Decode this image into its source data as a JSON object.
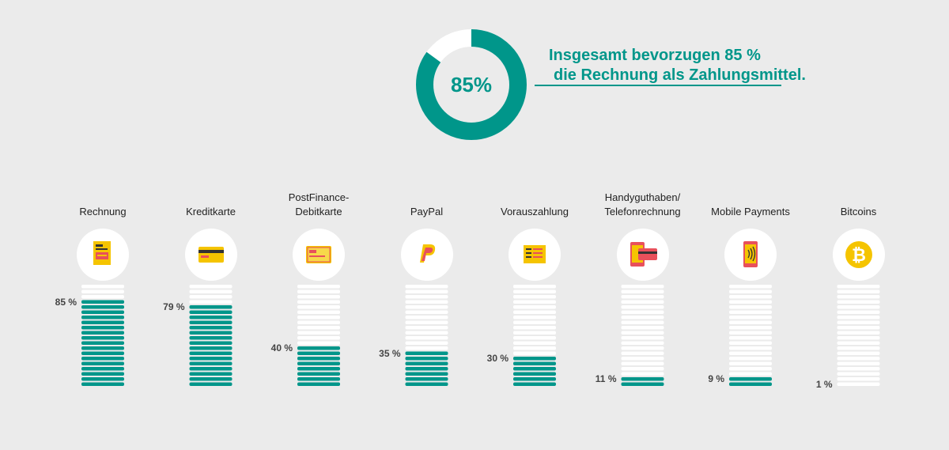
{
  "headline": {
    "line1": "Insgesamt bevorzugen 85 %",
    "line2": "die Rechnung als Zahlungsmittel."
  },
  "donut": {
    "value": 85,
    "label": "85%"
  },
  "colors": {
    "accent": "#00968a",
    "empty_bar": "#ffffff",
    "background": "#ebebeb"
  },
  "chart_data": [
    {
      "type": "pie",
      "values": [
        85,
        15
      ],
      "label": "85%",
      "colors": [
        "#00968a",
        "#ffffff"
      ]
    },
    {
      "type": "bar",
      "categories": [
        "Rechnung",
        "Kreditkarte",
        "PostFinance-\nDebitkarte",
        "PayPal",
        "Vorauszahlung",
        "Handyguthaben/\nTelefonrechnung",
        "Mobile Payments",
        "Bitcoins"
      ],
      "values": [
        85,
        79,
        40,
        35,
        30,
        11,
        9,
        1
      ],
      "value_labels": [
        "85 %",
        "79 %",
        "40 %",
        "35 %",
        "30 %",
        "11 %",
        "9 %",
        "1 %"
      ],
      "ylim": [
        0,
        100
      ],
      "segments_per_bar": 20,
      "icons": [
        "invoice-icon",
        "credit-card-icon",
        "debit-card-icon",
        "paypal-icon",
        "prepayment-icon",
        "phone-bill-icon",
        "mobile-payment-icon",
        "bitcoin-icon"
      ]
    }
  ]
}
